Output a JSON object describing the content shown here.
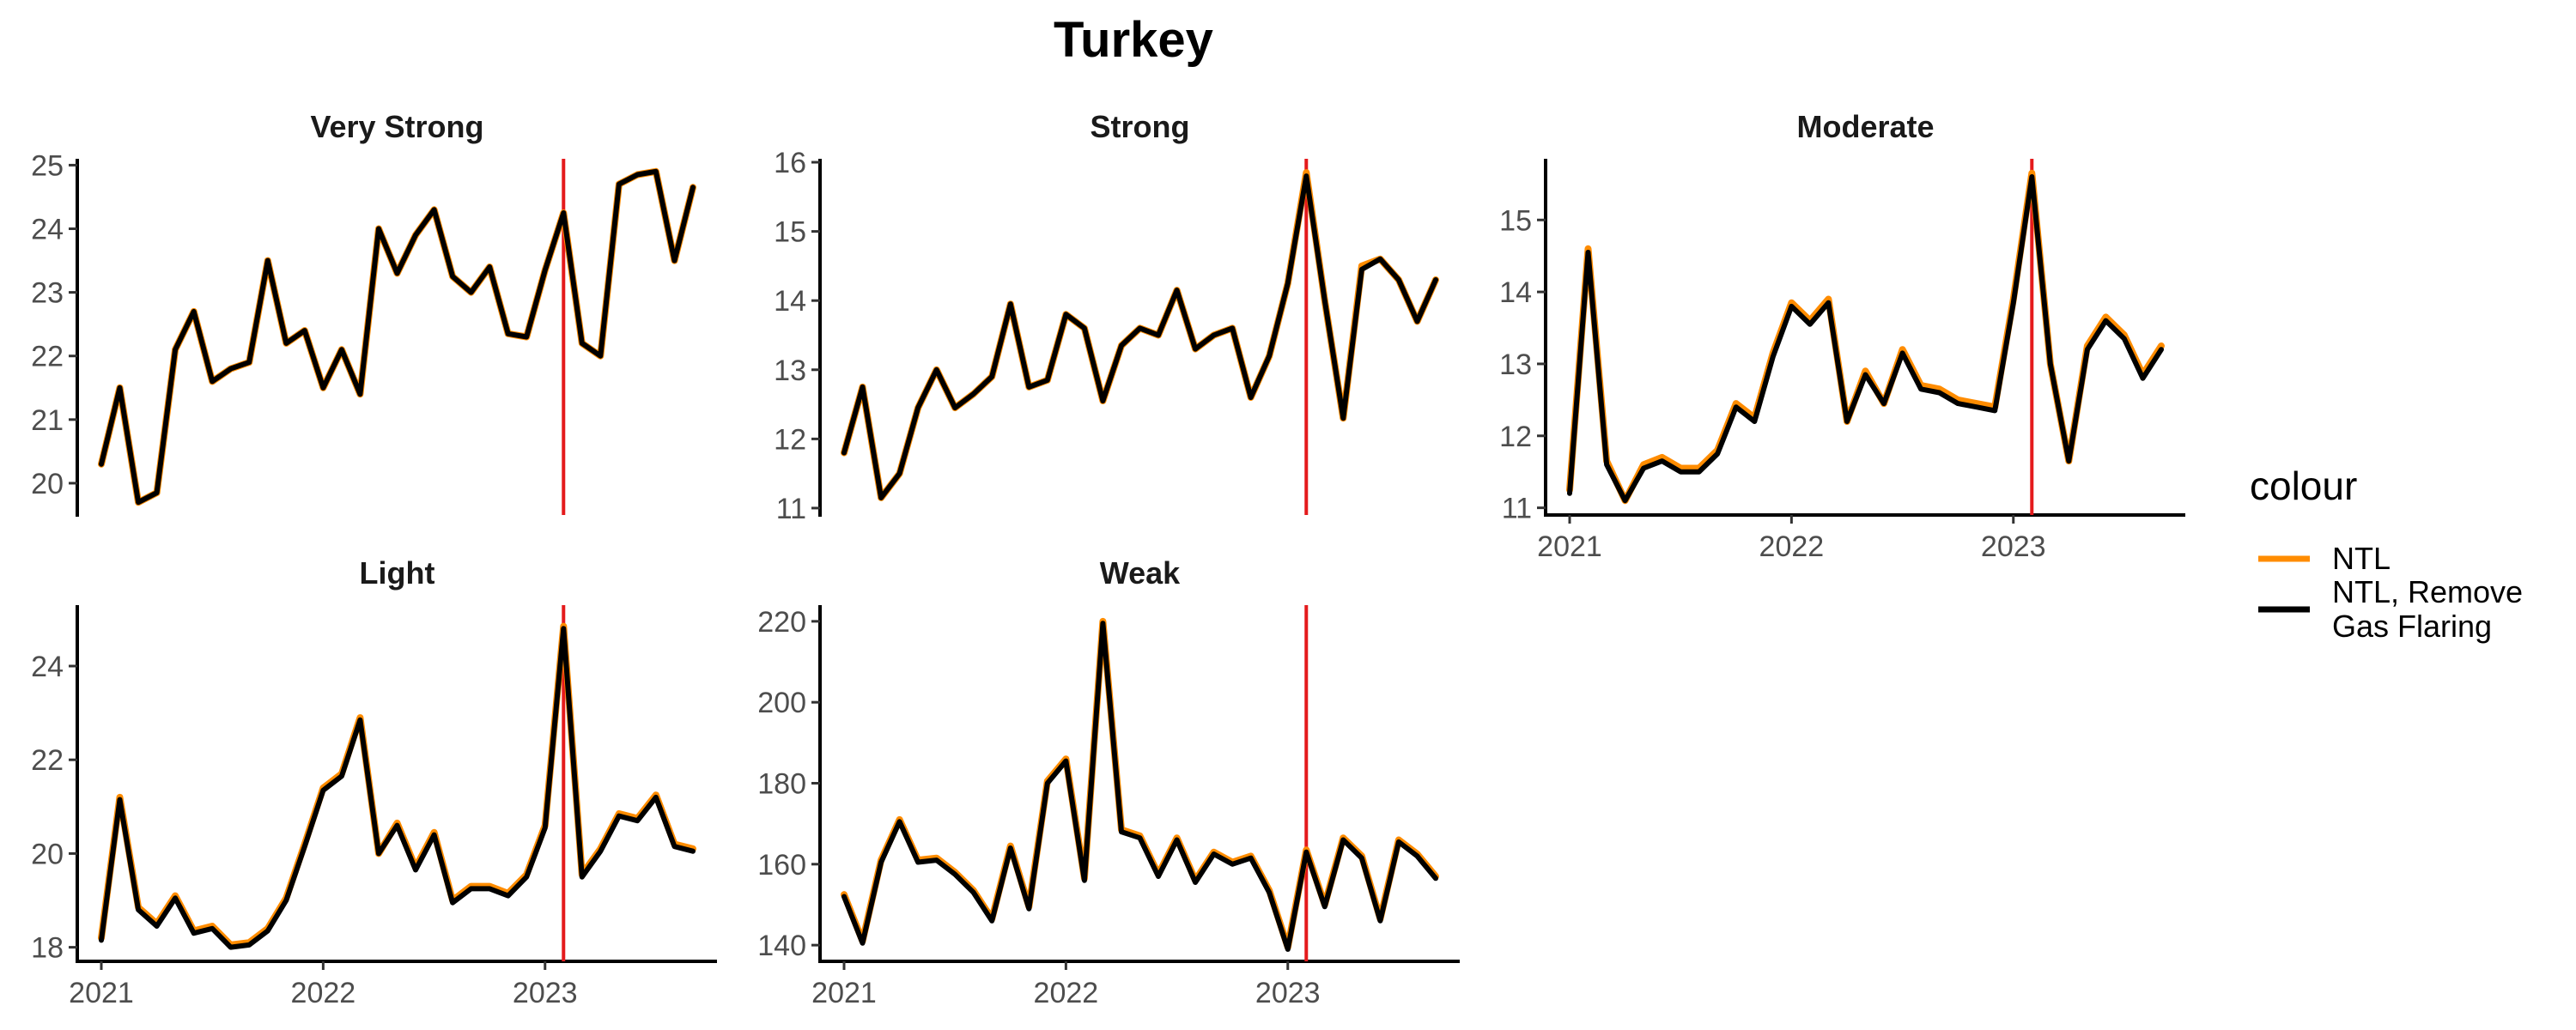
{
  "chart_data": {
    "type": "line",
    "title": "Turkey",
    "x_dates": [
      "2021-01",
      "2021-02",
      "2021-03",
      "2021-04",
      "2021-05",
      "2021-06",
      "2021-07",
      "2021-08",
      "2021-09",
      "2021-10",
      "2021-11",
      "2021-12",
      "2022-01",
      "2022-02",
      "2022-03",
      "2022-04",
      "2022-05",
      "2022-06",
      "2022-07",
      "2022-08",
      "2022-09",
      "2022-10",
      "2022-11",
      "2022-12",
      "2023-01",
      "2023-02",
      "2023-03",
      "2023-04",
      "2023-05",
      "2023-06",
      "2023-07",
      "2023-08",
      "2023-09"
    ],
    "x_ticks": [
      "2021",
      "2022",
      "2023"
    ],
    "event_line_date": "2023-02",
    "event_line_color": "#e41a1c",
    "legend": {
      "title": "colour",
      "position": "right",
      "entries": [
        {
          "label": "NTL",
          "color": "#ff8c00"
        },
        {
          "label": "NTL, Remove\nGas Flaring",
          "color": "#000000"
        }
      ]
    },
    "panels": [
      {
        "title": "Very Strong",
        "ylim": [
          19.5,
          25.1
        ],
        "yticks": [
          20,
          21,
          22,
          23,
          24,
          25
        ],
        "series": [
          {
            "name": "NTL",
            "values": [
              20.3,
              21.5,
              19.7,
              19.85,
              22.1,
              22.7,
              21.6,
              21.8,
              21.9,
              23.5,
              22.2,
              22.4,
              21.5,
              22.1,
              21.4,
              24.0,
              23.3,
              23.9,
              24.3,
              23.25,
              23.0,
              23.4,
              22.35,
              22.3,
              23.35,
              24.25,
              22.2,
              22.0,
              24.7,
              24.85,
              24.9,
              23.5,
              24.65
            ]
          },
          {
            "name": "NTL, Remove Gas Flaring",
            "values": [
              20.3,
              21.5,
              19.7,
              19.85,
              22.1,
              22.7,
              21.6,
              21.8,
              21.9,
              23.5,
              22.2,
              22.4,
              21.5,
              22.1,
              21.4,
              24.0,
              23.3,
              23.9,
              24.3,
              23.25,
              23.0,
              23.4,
              22.35,
              22.3,
              23.35,
              24.25,
              22.2,
              22.0,
              24.7,
              24.85,
              24.9,
              23.5,
              24.65
            ]
          }
        ]
      },
      {
        "title": "Strong",
        "ylim": [
          10.9,
          16.05
        ],
        "yticks": [
          11,
          12,
          13,
          14,
          15,
          16
        ],
        "series": [
          {
            "name": "NTL",
            "values": [
              11.8,
              12.75,
              11.15,
              11.5,
              12.45,
              13.0,
              12.45,
              12.65,
              12.9,
              13.95,
              12.75,
              12.85,
              13.8,
              13.6,
              12.55,
              13.35,
              13.6,
              13.5,
              14.15,
              13.3,
              13.5,
              13.6,
              12.6,
              13.2,
              14.25,
              15.85,
              14.0,
              12.3,
              14.5,
              14.6,
              14.3,
              13.7,
              14.3
            ]
          },
          {
            "name": "NTL, Remove Gas Flaring",
            "values": [
              11.8,
              12.75,
              11.15,
              11.5,
              12.45,
              13.0,
              12.45,
              12.65,
              12.9,
              13.95,
              12.75,
              12.85,
              13.8,
              13.6,
              12.55,
              13.35,
              13.6,
              13.5,
              14.15,
              13.3,
              13.5,
              13.6,
              12.6,
              13.2,
              14.25,
              15.8,
              14.0,
              12.3,
              14.45,
              14.6,
              14.3,
              13.7,
              14.3
            ]
          }
        ]
      },
      {
        "title": "Moderate",
        "ylim": [
          10.9,
          15.85
        ],
        "yticks": [
          11,
          12,
          13,
          14,
          15
        ],
        "series": [
          {
            "name": "NTL",
            "values": [
              11.25,
              14.6,
              11.65,
              11.1,
              11.6,
              11.7,
              11.55,
              11.55,
              11.8,
              12.45,
              12.25,
              13.15,
              13.85,
              13.6,
              13.9,
              12.2,
              12.9,
              12.45,
              13.2,
              12.7,
              12.65,
              12.5,
              12.45,
              12.4,
              13.9,
              15.65,
              13.0,
              11.65,
              13.25,
              13.65,
              13.4,
              12.85,
              13.25
            ]
          },
          {
            "name": "NTL, Remove Gas Flaring",
            "values": [
              11.2,
              14.55,
              11.6,
              11.1,
              11.55,
              11.65,
              11.5,
              11.5,
              11.75,
              12.4,
              12.2,
              13.1,
              13.8,
              13.55,
              13.85,
              12.2,
              12.85,
              12.45,
              13.15,
              12.65,
              12.6,
              12.45,
              12.4,
              12.35,
              13.85,
              15.6,
              13.0,
              11.65,
              13.2,
              13.6,
              13.35,
              12.8,
              13.2
            ]
          }
        ]
      },
      {
        "title": "Light",
        "ylim": [
          17.7,
          25.3
        ],
        "yticks": [
          18,
          20,
          22,
          24
        ],
        "series": [
          {
            "name": "NTL",
            "values": [
              18.2,
              21.2,
              18.85,
              18.5,
              19.1,
              18.35,
              18.45,
              18.05,
              18.1,
              18.4,
              19.05,
              20.2,
              21.4,
              21.7,
              22.9,
              20.0,
              20.65,
              19.7,
              20.45,
              19.0,
              19.3,
              19.3,
              19.15,
              19.55,
              20.6,
              24.85,
              19.55,
              20.1,
              20.85,
              20.75,
              21.25,
              20.2,
              20.1
            ]
          },
          {
            "name": "NTL, Remove Gas Flaring",
            "values": [
              18.15,
              21.15,
              18.8,
              18.45,
              19.05,
              18.3,
              18.4,
              18.0,
              18.05,
              18.35,
              19.0,
              20.15,
              21.35,
              21.65,
              22.85,
              20.0,
              20.6,
              19.65,
              20.4,
              18.95,
              19.25,
              19.25,
              19.1,
              19.5,
              20.55,
              24.8,
              19.5,
              20.05,
              20.8,
              20.7,
              21.2,
              20.15,
              20.05
            ]
          }
        ]
      },
      {
        "title": "Weak",
        "ylim": [
          136,
          224
        ],
        "yticks": [
          140,
          160,
          180,
          200,
          220
        ],
        "series": [
          {
            "name": "NTL",
            "values": [
              152.5,
              141,
              161,
              171,
              161,
              161.5,
              158,
              153.5,
              146.5,
              164.5,
              149.5,
              180.5,
              186,
              156.5,
              220,
              168.5,
              167,
              157.5,
              166.5,
              156,
              163,
              160.5,
              162,
              153.5,
              139.5,
              163.5,
              150,
              166.5,
              162,
              146.5,
              166,
              162.5,
              157
            ]
          },
          {
            "name": "NTL, Remove Gas Flaring",
            "values": [
              152,
              140.5,
              160.5,
              170.5,
              160.5,
              161,
              157.5,
              153,
              146,
              164,
              149,
              180,
              185.5,
              156,
              219.5,
              168,
              166.5,
              157,
              166,
              155.5,
              162.5,
              160,
              161.5,
              153,
              139,
              163,
              149.5,
              166,
              161.5,
              146,
              165.5,
              162,
              156.5
            ]
          }
        ]
      }
    ]
  }
}
